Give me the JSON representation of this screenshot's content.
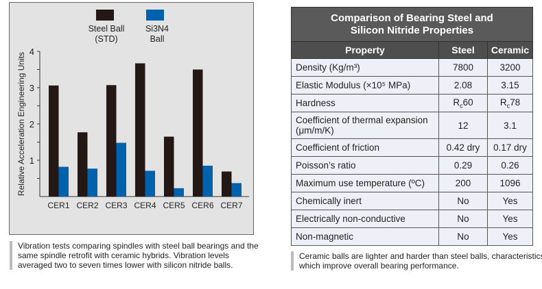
{
  "chart_data": {
    "type": "bar",
    "ylabel": "Relative Acceleration Engineering Units",
    "ylim": [
      0,
      4
    ],
    "yticks": [
      "1",
      "2",
      "3",
      "4"
    ],
    "categories": [
      "CER1",
      "CER2",
      "CER3",
      "CER4",
      "CER5",
      "CER6",
      "CER7"
    ],
    "legend_placement": "top",
    "series": [
      {
        "name": "Steel Ball (STD)",
        "name_lines": [
          "Steel Ball",
          "(STD)"
        ],
        "color": "#231815",
        "values": [
          3.06,
          1.77,
          3.07,
          3.67,
          1.65,
          3.5,
          0.69
        ]
      },
      {
        "name": "Si3N4 Ball",
        "name_lines": [
          "Si3N4",
          "Ball"
        ],
        "color": "#0062ac",
        "values": [
          0.82,
          0.77,
          1.48,
          0.71,
          0.23,
          0.85,
          0.37
        ]
      }
    ]
  },
  "chart_caption": "Vibration tests comparing spindles with steel ball bearings and the same spindle retrofit with ceramic hybrids. Vibration levels averaged two to seven times lower with silicon nitride balls.",
  "table": {
    "title_lines": [
      "Comparison of Bearing Steel and",
      "Silicon Nitride Properties"
    ],
    "headers": [
      "Property",
      "Steel",
      "Ceramic"
    ],
    "rows": [
      [
        "Density (Kg/m³)",
        "7800",
        "3200"
      ],
      [
        "Elastic Modulus (×10⁵ MPa)",
        "2.08",
        "3.15"
      ],
      [
        "Hardness",
        "Rc60",
        "Rc78"
      ],
      [
        "Coefficient of thermal expansion (μm/m/K)",
        "12",
        "3.1"
      ],
      [
        "Coefficient of friction",
        "0.42 dry",
        "0.17 dry"
      ],
      [
        "Poisson’s ratio",
        "0.29",
        "0.26"
      ],
      [
        "Maximum use temperature (ºC)",
        "200",
        "1096"
      ],
      [
        "Chemically inert",
        "No",
        "Yes"
      ],
      [
        "Electrically non-conductive",
        "No",
        "Yes"
      ],
      [
        "Non-magnetic",
        "No",
        "Yes"
      ]
    ],
    "caption": "Ceramic balls are lighter and harder than steel balls, characteristics which improve overall bearing performance."
  }
}
